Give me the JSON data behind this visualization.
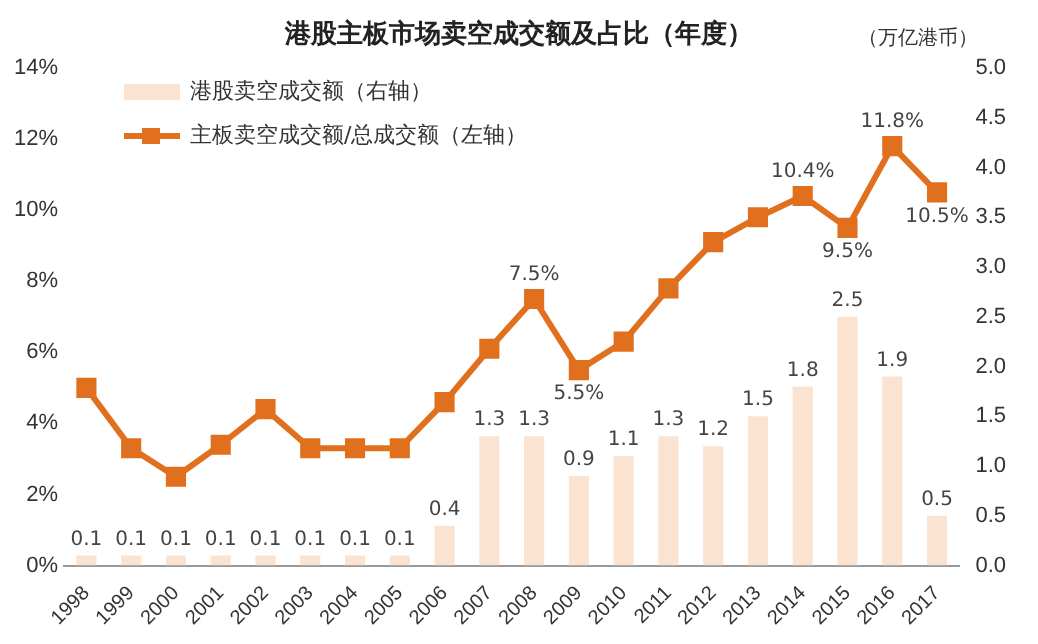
{
  "chart_data": {
    "type": "bar",
    "title": "港股主板市场卖空成交额及占比（年度）",
    "y2label": "（万亿港币）",
    "categories": [
      "1998",
      "1999",
      "2000",
      "2001",
      "2002",
      "2003",
      "2004",
      "2005",
      "2006",
      "2007",
      "2008",
      "2009",
      "2010",
      "2011",
      "2012",
      "2013",
      "2014",
      "2015",
      "2016",
      "2017"
    ],
    "series": [
      {
        "name": "港股卖空成交额（右轴）",
        "axis": "y2",
        "color": "#fbe3d2",
        "values": [
          0.1,
          0.1,
          0.1,
          0.1,
          0.1,
          0.1,
          0.1,
          0.1,
          0.4,
          1.3,
          1.3,
          0.9,
          1.1,
          1.3,
          1.2,
          1.5,
          1.8,
          2.5,
          1.9,
          0.5
        ],
        "value_labels": [
          "0.1",
          "0.1",
          "0.1",
          "0.1",
          "0.1",
          "0.1",
          "0.1",
          "0.1",
          "0.4",
          "1.3",
          "1.3",
          "0.9",
          "1.1",
          "1.3",
          "1.2",
          "1.5",
          "1.8",
          "2.5",
          "1.9",
          "0.5"
        ]
      },
      {
        "name": "主板卖空成交额/总成交额（左轴）",
        "type": "line",
        "axis": "y",
        "color": "#e0701e",
        "values": [
          5.0,
          3.3,
          2.5,
          3.4,
          4.4,
          3.3,
          3.3,
          3.3,
          4.6,
          6.1,
          7.5,
          5.5,
          6.3,
          7.8,
          9.1,
          9.8,
          10.4,
          9.5,
          11.8,
          10.5
        ],
        "value_labels": [
          null,
          null,
          null,
          null,
          null,
          null,
          null,
          null,
          null,
          null,
          "7.5%",
          "5.5%",
          null,
          null,
          null,
          null,
          "10.4%",
          "9.5%",
          "11.8%",
          "10.5%"
        ]
      }
    ],
    "ylim": [
      0,
      14
    ],
    "yticks": [
      {
        "value": 0,
        "label": "0%"
      },
      {
        "value": 2,
        "label": "2%"
      },
      {
        "value": 4,
        "label": "4%"
      },
      {
        "value": 6,
        "label": "6%"
      },
      {
        "value": 8,
        "label": "8%"
      },
      {
        "value": 10,
        "label": "10%"
      },
      {
        "value": 12,
        "label": "12%"
      },
      {
        "value": 14,
        "label": "14%"
      }
    ],
    "y2lim": [
      0,
      5
    ],
    "y2ticks": [
      {
        "value": 0,
        "label": "0.0"
      },
      {
        "value": 0.5,
        "label": "0.5"
      },
      {
        "value": 1,
        "label": "1.0"
      },
      {
        "value": 1.5,
        "label": "1.5"
      },
      {
        "value": 2,
        "label": "2.0"
      },
      {
        "value": 2.5,
        "label": "2.5"
      },
      {
        "value": 3,
        "label": "3.0"
      },
      {
        "value": 3.5,
        "label": "3.5"
      },
      {
        "value": 4,
        "label": "4.0"
      },
      {
        "value": 4.5,
        "label": "4.5"
      },
      {
        "value": 5,
        "label": "5.0"
      }
    ],
    "grid": false,
    "legend": "top left",
    "marker": "square",
    "line_style": "solid"
  }
}
